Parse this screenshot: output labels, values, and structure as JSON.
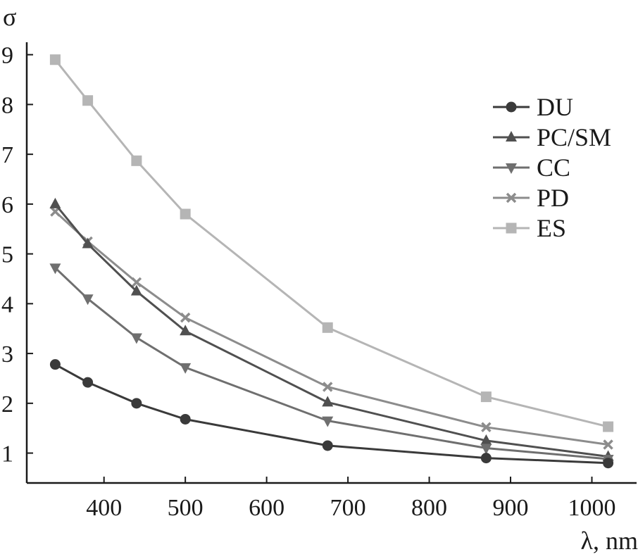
{
  "chart_data": {
    "type": "line",
    "title": "",
    "xlabel": "λ, nm",
    "ylabel": "σ",
    "xlim": [
      305,
      1055
    ],
    "ylim": [
      0.4,
      9.25
    ],
    "xticks": [
      400,
      500,
      600,
      700,
      800,
      900,
      1000
    ],
    "yticks": [
      1,
      2,
      3,
      4,
      5,
      6,
      7,
      8,
      9
    ],
    "grid": false,
    "legend_position": "top-right",
    "x": [
      340,
      380,
      440,
      500,
      675,
      870,
      1020
    ],
    "series": [
      {
        "name": "DU",
        "marker": "circle",
        "color": "#3a3a3a",
        "values": [
          2.78,
          2.42,
          2.0,
          1.68,
          1.15,
          0.9,
          0.8
        ]
      },
      {
        "name": "PC/SM",
        "marker": "triangle-up",
        "color": "#505050",
        "values": [
          6.0,
          5.2,
          4.25,
          3.45,
          2.02,
          1.25,
          0.93
        ]
      },
      {
        "name": "CC",
        "marker": "triangle-down",
        "color": "#6f6f6f",
        "values": [
          4.72,
          4.1,
          3.32,
          2.72,
          1.65,
          1.1,
          0.88
        ]
      },
      {
        "name": "PD",
        "marker": "x",
        "color": "#8c8c8c",
        "values": [
          5.85,
          5.25,
          4.43,
          3.72,
          2.33,
          1.52,
          1.17
        ]
      },
      {
        "name": "ES",
        "marker": "square",
        "color": "#b5b5b5",
        "values": [
          8.9,
          8.08,
          6.87,
          5.8,
          3.52,
          2.13,
          1.53
        ]
      }
    ]
  }
}
